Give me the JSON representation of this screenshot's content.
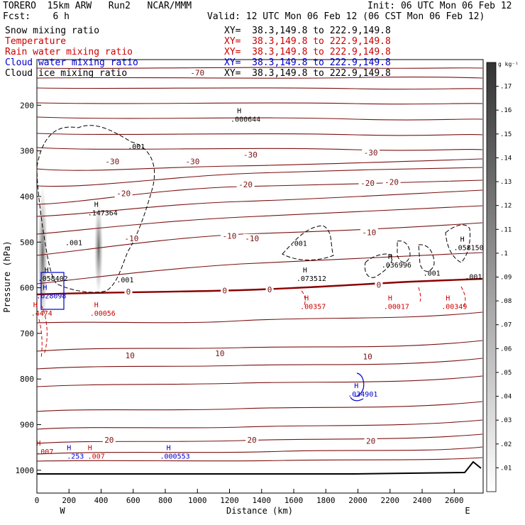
{
  "header": {
    "model": "TORERO  15km ARW   Run2   NCAR/MMM",
    "init": "Init: 06 UTC Mon 06 Feb 12",
    "fcst": "Fcst:    6 h",
    "valid": "Valid: 12 UTC Mon 06 Feb 12 (06 CST Mon 06 Feb 12)",
    "fields": [
      {
        "name": "Snow mixing ratio",
        "xy": "XY=  38.3,149.8 to 222.9,149.8",
        "color": "#000000"
      },
      {
        "name": "Temperature",
        "xy": "XY=  38.3,149.8 to 222.9,149.8",
        "color": "#cc0000"
      },
      {
        "name": "Rain water mixing ratio",
        "xy": "XY=  38.3,149.8 to 222.9,149.8",
        "color": "#cc0000"
      },
      {
        "name": "Cloud water mixing ratio",
        "xy": "XY=  38.3,149.8 to 222.9,149.8",
        "color": "#0000cc"
      },
      {
        "name": "Cloud ice mixing ratio",
        "xy": "XY=  38.3,149.8 to 222.9,149.8",
        "color": "#000000"
      }
    ]
  },
  "chart_data": {
    "type": "contour",
    "xlabel": "Distance (km)",
    "ylabel": "Pressure (hPa)",
    "xlim": [
      0,
      2780
    ],
    "ylim": [
      100,
      1050
    ],
    "xticks": [
      0,
      200,
      400,
      600,
      800,
      1000,
      1200,
      1400,
      1600,
      1800,
      2000,
      2200,
      2400,
      2600
    ],
    "yticks": [
      200,
      300,
      400,
      500,
      600,
      700,
      800,
      900,
      1000
    ],
    "x_ends": {
      "left": "W",
      "right": "E"
    },
    "colorbar": {
      "unit": "g kg⁻¹",
      "ticks": [
        ".01",
        ".02",
        ".03",
        ".04",
        ".05",
        ".06",
        ".07",
        ".08",
        ".09",
        ".1",
        ".11",
        ".12",
        ".13",
        ".14",
        ".15",
        ".16",
        ".17"
      ]
    },
    "temperature_labels": [
      {
        "text": "-70",
        "x": 1000,
        "y": 130
      },
      {
        "text": "-30",
        "x": 470,
        "y": 325
      },
      {
        "text": "-30",
        "x": 970,
        "y": 325
      },
      {
        "text": "-30",
        "x": 1330,
        "y": 310
      },
      {
        "text": "-30",
        "x": 2080,
        "y": 305
      },
      {
        "text": "-20",
        "x": 540,
        "y": 395
      },
      {
        "text": "-20",
        "x": 1300,
        "y": 375
      },
      {
        "text": "-20",
        "x": 2060,
        "y": 372
      },
      {
        "text": "-20",
        "x": 2210,
        "y": 370
      },
      {
        "text": "-10",
        "x": 590,
        "y": 493
      },
      {
        "text": "-10",
        "x": 1200,
        "y": 488
      },
      {
        "text": "-10",
        "x": 1340,
        "y": 493
      },
      {
        "text": "-10",
        "x": 2070,
        "y": 480
      },
      {
        "text": "0",
        "x": 570,
        "y": 610
      },
      {
        "text": "0",
        "x": 1170,
        "y": 608
      },
      {
        "text": "0",
        "x": 1450,
        "y": 605
      },
      {
        "text": "0",
        "x": 2130,
        "y": 595
      },
      {
        "text": "10",
        "x": 580,
        "y": 750
      },
      {
        "text": "10",
        "x": 1140,
        "y": 745
      },
      {
        "text": "10",
        "x": 2060,
        "y": 752
      },
      {
        "text": "20",
        "x": 450,
        "y": 935
      },
      {
        "text": "20",
        "x": 1340,
        "y": 935
      },
      {
        "text": "20",
        "x": 2080,
        "y": 937
      }
    ],
    "hmax_labels": [
      {
        "text": ".000644",
        "x": 1300,
        "y": 230,
        "color": "#000000"
      },
      {
        "text": ".147364",
        "x": 410,
        "y": 435,
        "color": "#000000"
      },
      {
        "text": ".058150",
        "x": 2690,
        "y": 511,
        "color": "#000000"
      },
      {
        "text": ".036996",
        "x": 2240,
        "y": 549,
        "color": "#000000"
      },
      {
        "text": ".073512",
        "x": 1710,
        "y": 579,
        "color": "#000000"
      },
      {
        "text": ".058402",
        "x": 100,
        "y": 579,
        "color": "#000000"
      },
      {
        "text": ".028098",
        "x": 90,
        "y": 617,
        "color": "#0000cc"
      },
      {
        "text": ".4474",
        "x": 30,
        "y": 655,
        "color": "#cc0000"
      },
      {
        "text": ".00056",
        "x": 410,
        "y": 655,
        "color": "#cc0000"
      },
      {
        "text": ".00357",
        "x": 1720,
        "y": 640,
        "color": "#cc0000"
      },
      {
        "text": ".00017",
        "x": 2240,
        "y": 640,
        "color": "#cc0000"
      },
      {
        "text": ".00349",
        "x": 2600,
        "y": 640,
        "color": "#cc0000"
      },
      {
        "text": ".034901",
        "x": 2030,
        "y": 832,
        "color": "#0000cc"
      },
      {
        "text": ".007",
        "x": 50,
        "y": 958,
        "color": "#cc0000"
      },
      {
        "text": ".253",
        "x": 240,
        "y": 968,
        "color": "#0000cc"
      },
      {
        "text": ".007",
        "x": 370,
        "y": 968,
        "color": "#cc0000"
      },
      {
        "text": ".000553",
        "x": 860,
        "y": 968,
        "color": "#0000cc"
      }
    ],
    "cloud_labels": [
      {
        "text": ".001",
        "x": 620,
        "y": 290
      },
      {
        "text": ".001",
        "x": 230,
        "y": 500
      },
      {
        "text": ".001",
        "x": 550,
        "y": 582
      },
      {
        "text": ".001",
        "x": 1630,
        "y": 502
      },
      {
        "text": ".001",
        "x": 2460,
        "y": 567
      },
      {
        "text": ".001",
        "x": 2720,
        "y": 575
      }
    ]
  }
}
